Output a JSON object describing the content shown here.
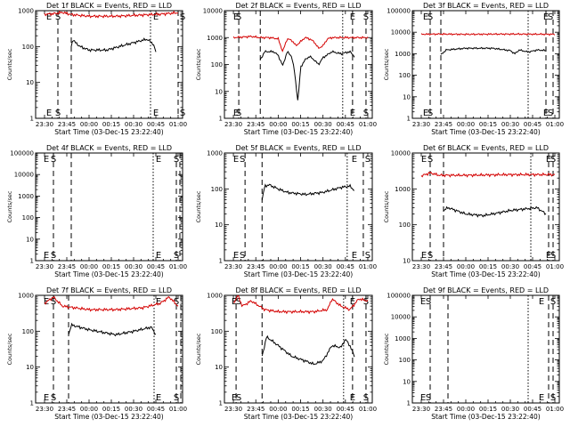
{
  "figure": {
    "start_time_label": "Start Time (03-Dec-15 23:22:40)",
    "ylabel": "Counts/sec",
    "xticks": [
      "23:30",
      "23:45",
      "00:00",
      "00:15",
      "00:30",
      "00:45",
      "01:00"
    ]
  },
  "colors": {
    "events": "#000000",
    "lld": "#d40000"
  },
  "chart_data": [
    {
      "type": "line",
      "panel": 1,
      "title": "Det 1f BLACK = Events, RED = LLD",
      "yscale": "log",
      "ylim": [
        1,
        1000
      ],
      "yticks": [
        "1",
        "10",
        "100",
        "1000"
      ],
      "markers": {
        "dashed": [
          23.65,
          23.8,
          1.0,
          1.05
        ],
        "dotted": [
          0.69
        ]
      },
      "marker_letters": [
        {
          "t": 23.55,
          "label": "E"
        },
        {
          "t": 23.65,
          "label": "S"
        },
        {
          "t": 0.75,
          "label": "E"
        },
        {
          "t": 1.05,
          "label": "S"
        }
      ],
      "series": [
        {
          "name": "BLACK = Events",
          "color": "#000000",
          "start": 23.8,
          "end": 0.75,
          "knots": [
            [
              23.8,
              100
            ],
            [
              23.82,
              170
            ],
            [
              23.83,
              140
            ],
            [
              23.9,
              100
            ],
            [
              24.0,
              80
            ],
            [
              24.2,
              80
            ],
            [
              24.4,
              110
            ],
            [
              24.6,
              150
            ],
            [
              24.65,
              160
            ],
            [
              24.72,
              120
            ],
            [
              24.75,
              70
            ]
          ]
        },
        {
          "name": "RED = LLD",
          "color": "#d40000",
          "start": 23.5,
          "end": 1.0,
          "knots": [
            [
              23.5,
              800
            ],
            [
              23.6,
              820
            ],
            [
              23.7,
              900
            ],
            [
              23.8,
              780
            ],
            [
              24.0,
              700
            ],
            [
              24.3,
              700
            ],
            [
              24.6,
              760
            ],
            [
              24.8,
              800
            ],
            [
              25.0,
              880
            ]
          ]
        }
      ]
    },
    {
      "type": "line",
      "panel": 2,
      "title": "Det 2f BLACK = Events, RED = LLD",
      "yscale": "log",
      "ylim": [
        1,
        10000
      ],
      "yticks": [
        "1",
        "10",
        "100",
        "1000",
        "10000"
      ],
      "markers": {
        "dashed": [
          23.56,
          23.8,
          0.83,
          0.98
        ],
        "dotted": [
          0.72
        ]
      },
      "marker_letters": [
        {
          "t": 23.53,
          "label": "E"
        },
        {
          "t": 23.56,
          "label": "S"
        },
        {
          "t": 0.83,
          "label": "E"
        },
        {
          "t": 0.98,
          "label": "S"
        }
      ],
      "series": [
        {
          "name": "BLACK = Events",
          "color": "#000000",
          "start": 23.8,
          "end": 0.85,
          "knots": [
            [
              23.8,
              150
            ],
            [
              23.85,
              300
            ],
            [
              23.95,
              300
            ],
            [
              24.0,
              220
            ],
            [
              24.05,
              90
            ],
            [
              24.1,
              300
            ],
            [
              24.15,
              200
            ],
            [
              24.18,
              60
            ],
            [
              24.22,
              4
            ],
            [
              24.25,
              80
            ],
            [
              24.3,
              150
            ],
            [
              24.35,
              200
            ],
            [
              24.4,
              150
            ],
            [
              24.45,
              100
            ],
            [
              24.5,
              180
            ],
            [
              24.6,
              300
            ],
            [
              24.7,
              250
            ],
            [
              24.8,
              300
            ],
            [
              24.85,
              200
            ]
          ]
        },
        {
          "name": "RED = LLD",
          "color": "#d40000",
          "start": 23.5,
          "end": 1.0,
          "knots": [
            [
              23.5,
              1000
            ],
            [
              23.7,
              1100
            ],
            [
              23.8,
              1000
            ],
            [
              23.9,
              1000
            ],
            [
              24.0,
              900
            ],
            [
              24.05,
              300
            ],
            [
              24.1,
              900
            ],
            [
              24.15,
              800
            ],
            [
              24.2,
              500
            ],
            [
              24.3,
              1000
            ],
            [
              24.35,
              900
            ],
            [
              24.4,
              700
            ],
            [
              24.45,
              400
            ],
            [
              24.5,
              500
            ],
            [
              24.55,
              900
            ],
            [
              24.6,
              1000
            ],
            [
              24.8,
              1000
            ],
            [
              25.0,
              1000
            ]
          ]
        }
      ]
    },
    {
      "type": "line",
      "panel": 3,
      "title": "Det 3f BLACK = Events, RED = LLD",
      "yscale": "log",
      "ylim": [
        1,
        100000
      ],
      "yticks": [
        "1",
        "10",
        "100",
        "1000",
        "10000",
        "100000"
      ],
      "markers": {
        "dashed": [
          23.6,
          23.72,
          0.9,
          0.98
        ],
        "dotted": [
          0.7
        ]
      },
      "marker_letters": [
        {
          "t": 23.55,
          "label": "E"
        },
        {
          "t": 23.6,
          "label": "S"
        },
        {
          "t": 0.9,
          "label": "E"
        },
        {
          "t": 0.95,
          "label": "S"
        }
      ],
      "series": [
        {
          "name": "BLACK = Events",
          "color": "#000000",
          "start": 23.72,
          "end": 0.9,
          "knots": [
            [
              23.72,
              900
            ],
            [
              23.78,
              1500
            ],
            [
              24.0,
              1800
            ],
            [
              24.3,
              1800
            ],
            [
              24.5,
              1400
            ],
            [
              24.55,
              1000
            ],
            [
              24.6,
              1500
            ],
            [
              24.7,
              1200
            ],
            [
              24.8,
              1500
            ],
            [
              24.9,
              1400
            ]
          ]
        },
        {
          "name": "RED = LLD",
          "color": "#d40000",
          "start": 23.5,
          "end": 1.0,
          "knots": [
            [
              23.5,
              8000
            ],
            [
              23.7,
              8200
            ],
            [
              24.0,
              8000
            ],
            [
              24.5,
              8200
            ],
            [
              25.0,
              8000
            ]
          ]
        }
      ]
    },
    {
      "type": "line",
      "panel": 4,
      "title": "Det 4f BLACK = Events, RED = LLD",
      "yscale": "log",
      "ylim": [
        1,
        100000
      ],
      "yticks": [
        "1",
        "10",
        "100",
        "1000",
        "10000",
        "100000"
      ],
      "markers": {
        "dashed": [
          23.6,
          23.8,
          0.98,
          1.02
        ],
        "dotted": [
          0.72
        ]
      },
      "marker_letters": [
        {
          "t": 23.52,
          "label": "E"
        },
        {
          "t": 23.6,
          "label": "S"
        },
        {
          "t": 0.78,
          "label": "E"
        },
        {
          "t": 0.98,
          "label": "S"
        }
      ],
      "series": []
    },
    {
      "type": "line",
      "panel": 5,
      "title": "Det 5f BLACK = Events, RED = LLD",
      "yscale": "log",
      "ylim": [
        1,
        1000
      ],
      "yticks": [
        "1",
        "10",
        "100",
        "1000"
      ],
      "markers": {
        "dashed": [
          23.63,
          23.82,
          0.95,
          1.05
        ],
        "dotted": [
          0.77
        ]
      },
      "marker_letters": [
        {
          "t": 23.53,
          "label": "E"
        },
        {
          "t": 23.6,
          "label": "S"
        },
        {
          "t": 0.85,
          "label": "E"
        },
        {
          "t": 1.0,
          "label": "S"
        }
      ],
      "series": [
        {
          "name": "BLACK = Events",
          "color": "#000000",
          "start": 23.82,
          "end": 0.85,
          "knots": [
            [
              23.82,
              50
            ],
            [
              23.85,
              120
            ],
            [
              23.9,
              130
            ],
            [
              24.0,
              100
            ],
            [
              24.1,
              80
            ],
            [
              24.3,
              70
            ],
            [
              24.5,
              80
            ],
            [
              24.7,
              110
            ],
            [
              24.8,
              120
            ],
            [
              24.85,
              90
            ]
          ]
        }
      ]
    },
    {
      "type": "line",
      "panel": 6,
      "title": "Det 6f BLACK = Events, RED = LLD",
      "yscale": "log",
      "ylim": [
        10,
        10000
      ],
      "yticks": [
        "10",
        "100",
        "1000",
        "10000"
      ],
      "markers": {
        "dashed": [
          23.6,
          23.75,
          0.93,
          0.98
        ],
        "dotted": [
          0.73
        ]
      },
      "marker_letters": [
        {
          "t": 23.53,
          "label": "E"
        },
        {
          "t": 23.6,
          "label": "S"
        },
        {
          "t": 0.93,
          "label": "E"
        },
        {
          "t": 0.98,
          "label": "S"
        }
      ],
      "series": [
        {
          "name": "BLACK = Events",
          "color": "#000000",
          "start": 23.75,
          "end": 0.9,
          "knots": [
            [
              23.75,
              250
            ],
            [
              23.8,
              300
            ],
            [
              24.0,
              200
            ],
            [
              24.2,
              180
            ],
            [
              24.5,
              250
            ],
            [
              24.8,
              300
            ],
            [
              24.9,
              200
            ]
          ]
        },
        {
          "name": "RED = LLD",
          "color": "#d40000",
          "start": 23.5,
          "end": 1.0,
          "knots": [
            [
              23.5,
              2300
            ],
            [
              23.6,
              2800
            ],
            [
              23.7,
              2400
            ],
            [
              24.0,
              2400
            ],
            [
              24.5,
              2500
            ],
            [
              25.0,
              2500
            ]
          ]
        }
      ]
    },
    {
      "type": "line",
      "panel": 7,
      "title": "Det 7f BLACK = Events, RED = LLD",
      "yscale": "log",
      "ylim": [
        1,
        1000
      ],
      "yticks": [
        "1",
        "10",
        "100",
        "1000"
      ],
      "markers": {
        "dashed": [
          23.6,
          23.77,
          0.98,
          1.03
        ],
        "dotted": [
          0.73
        ]
      },
      "marker_letters": [
        {
          "t": 23.52,
          "label": "E"
        },
        {
          "t": 23.6,
          "label": "S"
        },
        {
          "t": 0.78,
          "label": "E"
        },
        {
          "t": 0.98,
          "label": "S"
        }
      ],
      "series": [
        {
          "name": "BLACK = Events",
          "color": "#000000",
          "start": 23.77,
          "end": 0.75,
          "knots": [
            [
              23.77,
              80
            ],
            [
              23.8,
              150
            ],
            [
              24.0,
              110
            ],
            [
              24.3,
              80
            ],
            [
              24.5,
              100
            ],
            [
              24.7,
              130
            ],
            [
              24.75,
              80
            ]
          ]
        },
        {
          "name": "RED = LLD",
          "color": "#d40000",
          "start": 23.5,
          "end": 1.0,
          "knots": [
            [
              23.5,
              600
            ],
            [
              23.6,
              900
            ],
            [
              23.7,
              500
            ],
            [
              24.0,
              400
            ],
            [
              24.3,
              400
            ],
            [
              24.6,
              450
            ],
            [
              24.8,
              600
            ],
            [
              24.9,
              900
            ],
            [
              25.0,
              500
            ]
          ]
        }
      ]
    },
    {
      "type": "line",
      "panel": 8,
      "title": "Det 8f BLACK = Events, RED = LLD",
      "yscale": "log",
      "ylim": [
        1,
        1000
      ],
      "yticks": [
        "1",
        "10",
        "100",
        "1000"
      ],
      "markers": {
        "dashed": [
          23.53,
          23.82,
          0.83,
          0.98
        ],
        "dotted": [
          0.73
        ]
      },
      "marker_letters": [
        {
          "t": 23.51,
          "label": "E"
        },
        {
          "t": 23.56,
          "label": "S"
        },
        {
          "t": 0.83,
          "label": "E"
        },
        {
          "t": 0.98,
          "label": "S"
        }
      ],
      "series": [
        {
          "name": "BLACK = Events",
          "color": "#000000",
          "start": 23.82,
          "end": 0.85,
          "knots": [
            [
              23.82,
              20
            ],
            [
              23.87,
              70
            ],
            [
              24.0,
              40
            ],
            [
              24.15,
              20
            ],
            [
              24.3,
              15
            ],
            [
              24.4,
              12
            ],
            [
              24.5,
              15
            ],
            [
              24.6,
              40
            ],
            [
              24.7,
              35
            ],
            [
              24.75,
              60
            ],
            [
              24.8,
              40
            ],
            [
              24.85,
              20
            ]
          ]
        },
        {
          "name": "RED = LLD",
          "color": "#d40000",
          "start": 23.5,
          "end": 1.0,
          "knots": [
            [
              23.5,
              600
            ],
            [
              23.55,
              1000
            ],
            [
              23.6,
              500
            ],
            [
              23.7,
              700
            ],
            [
              23.85,
              400
            ],
            [
              24.0,
              350
            ],
            [
              24.2,
              350
            ],
            [
              24.4,
              350
            ],
            [
              24.55,
              400
            ],
            [
              24.6,
              800
            ],
            [
              24.7,
              500
            ],
            [
              24.8,
              400
            ],
            [
              24.9,
              800
            ],
            [
              25.0,
              700
            ]
          ]
        }
      ]
    },
    {
      "type": "line",
      "panel": 9,
      "title": "Det 9f BLACK = Events, RED = LLD",
      "yscale": "log",
      "ylim": [
        1,
        100000
      ],
      "yticks": [
        "1",
        "10",
        "100",
        "1000",
        "10000",
        "100000"
      ],
      "markers": {
        "dashed": [
          23.6,
          23.8,
          0.93,
          0.98
        ],
        "dotted": [
          0.7
        ]
      },
      "marker_letters": [
        {
          "t": 23.52,
          "label": "E"
        },
        {
          "t": 23.58,
          "label": "S"
        },
        {
          "t": 0.85,
          "label": "E"
        },
        {
          "t": 0.98,
          "label": "S"
        }
      ],
      "series": []
    }
  ]
}
